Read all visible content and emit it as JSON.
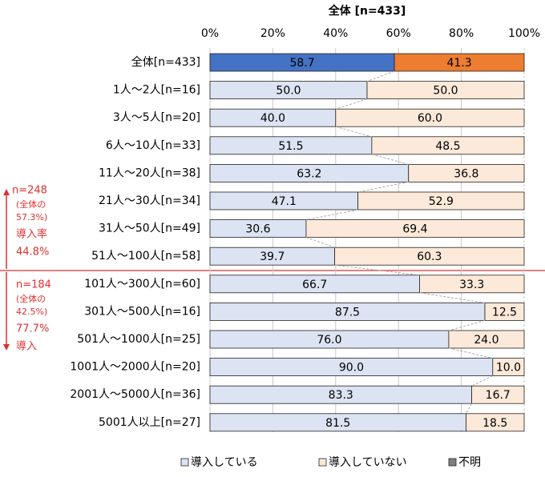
{
  "chart_data": {
    "type": "stacked_barh",
    "title": "全体 [n=433]",
    "categories": [
      "全体[n=433]",
      "1人～2人[n=16]",
      "3人～5人[n=20]",
      "6人～10人[n=33]",
      "11人～20人[n=38]",
      "21人～30人[n=34]",
      "31人～50人[n=49]",
      "51人～100人[n=58]",
      "101人～300人[n=60]",
      "301人～500人[n=16]",
      "501人～1000人[n=25]",
      "1001人～2000人[n=20]",
      "2001人～5000人[n=36]",
      "5001人以上[n=27]"
    ],
    "series": [
      {
        "name": "導入している",
        "color": "#dce3f2",
        "values": [
          58.7,
          50.0,
          40.0,
          51.5,
          63.2,
          47.1,
          30.6,
          39.7,
          66.7,
          87.5,
          76.0,
          90.0,
          83.3,
          81.5
        ],
        "value_labels": [
          "58.7",
          "50.0",
          "40.0",
          "51.5",
          "63.2",
          "47.1",
          "30.6",
          "39.7",
          "66.7",
          "87.5",
          "76.0",
          "90.0",
          "83.3",
          "81.5"
        ]
      },
      {
        "name": "導入していない",
        "color": "#fde9d9",
        "values": [
          41.3,
          50.0,
          60.0,
          48.5,
          36.8,
          52.9,
          69.4,
          60.3,
          33.3,
          12.5,
          24.0,
          10.0,
          16.7,
          18.5
        ],
        "value_labels": [
          "41.3",
          "50.0",
          "60.0",
          "48.5",
          "36.8",
          "52.9",
          "69.4",
          "60.3",
          "33.3",
          "12.5",
          "24.0",
          "10.0",
          "16.7",
          "18.5"
        ]
      },
      {
        "name": "不明",
        "color": "#7f7f7f",
        "values": [
          0,
          0,
          0,
          0,
          0,
          0,
          0,
          0,
          0,
          0,
          0,
          0,
          0,
          0
        ]
      }
    ],
    "highlight": {
      "index": 0,
      "colors": [
        "#4472c4",
        "#ed7d31",
        "#7f7f7f"
      ]
    },
    "xlim": [
      0,
      100
    ],
    "xticks": [
      {
        "value": 0,
        "label": "0%"
      },
      {
        "value": 20,
        "label": "20%"
      },
      {
        "value": 40,
        "label": "40%"
      },
      {
        "value": 60,
        "label": "60%"
      },
      {
        "value": 80,
        "label": "80%"
      },
      {
        "value": 100,
        "label": "100%"
      }
    ],
    "grid": true,
    "legend": "bottom",
    "annotations": {
      "upper": [
        "n=248",
        "(全体の",
        "57.3%)",
        "導入率",
        "44.8%"
      ],
      "lower": [
        "n=184",
        "(全体の",
        "42.5%)",
        "77.7%",
        "導入"
      ]
    }
  }
}
